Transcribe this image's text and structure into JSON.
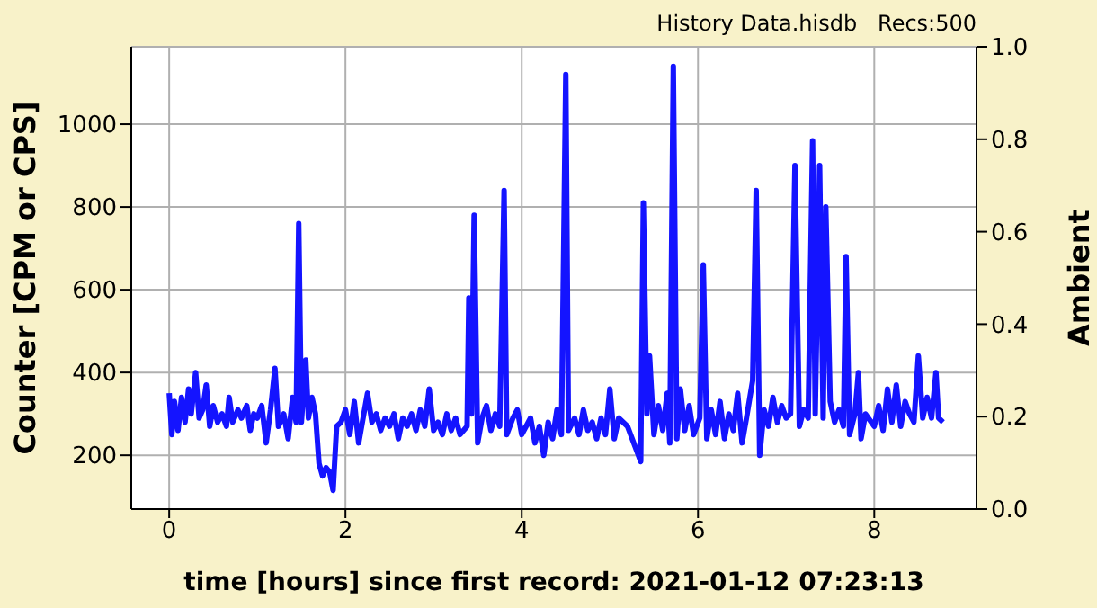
{
  "chart_data": {
    "type": "line",
    "title": "History Data.hisdb   Recs:500",
    "xlabel": "time [hours] since first record: 2021-01-12 07:23:13",
    "ylabel": "Counter  [CPM or CPS]",
    "y2label": "Ambient",
    "xlim": [
      -0.43,
      9.16
    ],
    "xticks": [
      0,
      2,
      4,
      6,
      8
    ],
    "ylim": [
      70,
      1187
    ],
    "yticks": [
      200,
      400,
      600,
      800,
      1000
    ],
    "y2lim": [
      0,
      1
    ],
    "y2ticks": [
      {
        "value": 0,
        "label": "0.0"
      },
      {
        "value": 0.2,
        "label": "0.2"
      },
      {
        "value": 0.4,
        "label": "0.4"
      },
      {
        "value": 0.6,
        "label": "0.6"
      },
      {
        "value": 0.8,
        "label": "0.8"
      },
      {
        "value": 1,
        "label": "1.0"
      }
    ],
    "grid": true,
    "legend": false,
    "marker": "none",
    "line_style": "solid",
    "series": [
      {
        "color": "#1414ff",
        "x": [
          0,
          0.03,
          0.06,
          0.1,
          0.14,
          0.18,
          0.22,
          0.25,
          0.3,
          0.34,
          0.38,
          0.42,
          0.46,
          0.5,
          0.55,
          0.6,
          0.65,
          0.68,
          0.72,
          0.78,
          0.82,
          0.88,
          0.92,
          0.96,
          1.0,
          1.05,
          1.1,
          1.15,
          1.2,
          1.24,
          1.3,
          1.35,
          1.4,
          1.44,
          1.47,
          1.5,
          1.55,
          1.58,
          1.62,
          1.66,
          1.7,
          1.74,
          1.78,
          1.82,
          1.86,
          1.9,
          1.95,
          2.0,
          2.05,
          2.1,
          2.15,
          2.2,
          2.25,
          2.3,
          2.35,
          2.4,
          2.45,
          2.5,
          2.55,
          2.6,
          2.65,
          2.7,
          2.75,
          2.8,
          2.85,
          2.9,
          2.95,
          3.0,
          3.05,
          3.1,
          3.15,
          3.2,
          3.25,
          3.3,
          3.38,
          3.4,
          3.43,
          3.46,
          3.5,
          3.55,
          3.6,
          3.65,
          3.7,
          3.75,
          3.8,
          3.83,
          3.9,
          3.95,
          4.0,
          4.1,
          4.15,
          4.2,
          4.25,
          4.3,
          4.35,
          4.4,
          4.45,
          4.5,
          4.53,
          4.6,
          4.65,
          4.7,
          4.75,
          4.8,
          4.85,
          4.9,
          4.95,
          5.0,
          5.05,
          5.1,
          5.2,
          5.35,
          5.38,
          5.42,
          5.45,
          5.5,
          5.55,
          5.6,
          5.65,
          5.68,
          5.72,
          5.76,
          5.8,
          5.85,
          5.9,
          5.95,
          6.02,
          6.06,
          6.1,
          6.15,
          6.2,
          6.25,
          6.3,
          6.35,
          6.4,
          6.45,
          6.5,
          6.55,
          6.62,
          6.66,
          6.7,
          6.75,
          6.8,
          6.85,
          6.9,
          6.95,
          7.0,
          7.05,
          7.1,
          7.15,
          7.2,
          7.25,
          7.3,
          7.33,
          7.38,
          7.42,
          7.45,
          7.5,
          7.55,
          7.6,
          7.65,
          7.68,
          7.72,
          7.78,
          7.82,
          7.85,
          7.9,
          8.0,
          8.05,
          8.1,
          8.15,
          8.2,
          8.25,
          8.3,
          8.35,
          8.4,
          8.45,
          8.5,
          8.55,
          8.6,
          8.65,
          8.7,
          8.73,
          8.78
        ],
        "values": [
          350,
          250,
          330,
          260,
          340,
          280,
          360,
          300,
          400,
          290,
          310,
          370,
          270,
          320,
          280,
          300,
          270,
          340,
          280,
          310,
          290,
          320,
          260,
          300,
          290,
          320,
          230,
          310,
          410,
          270,
          300,
          240,
          340,
          280,
          760,
          280,
          430,
          290,
          340,
          300,
          180,
          150,
          170,
          160,
          115,
          270,
          280,
          310,
          250,
          330,
          230,
          290,
          350,
          280,
          300,
          260,
          290,
          270,
          300,
          240,
          290,
          270,
          300,
          260,
          310,
          270,
          360,
          260,
          280,
          250,
          300,
          260,
          290,
          250,
          270,
          580,
          300,
          780,
          230,
          290,
          320,
          260,
          300,
          270,
          840,
          250,
          290,
          310,
          250,
          290,
          230,
          270,
          200,
          280,
          240,
          310,
          250,
          1120,
          260,
          290,
          250,
          310,
          260,
          280,
          240,
          290,
          250,
          360,
          240,
          290,
          270,
          185,
          810,
          300,
          440,
          250,
          320,
          260,
          350,
          230,
          1140,
          240,
          360,
          260,
          320,
          250,
          290,
          660,
          240,
          310,
          250,
          330,
          240,
          300,
          260,
          350,
          230,
          290,
          380,
          840,
          200,
          310,
          270,
          340,
          280,
          320,
          290,
          300,
          900,
          270,
          310,
          290,
          960,
          300,
          900,
          290,
          800,
          330,
          280,
          310,
          270,
          680,
          250,
          300,
          400,
          240,
          300,
          270,
          320,
          260,
          360,
          280,
          370,
          270,
          330,
          300,
          280,
          440,
          290,
          340,
          290,
          400,
          290,
          280
        ]
      }
    ]
  }
}
